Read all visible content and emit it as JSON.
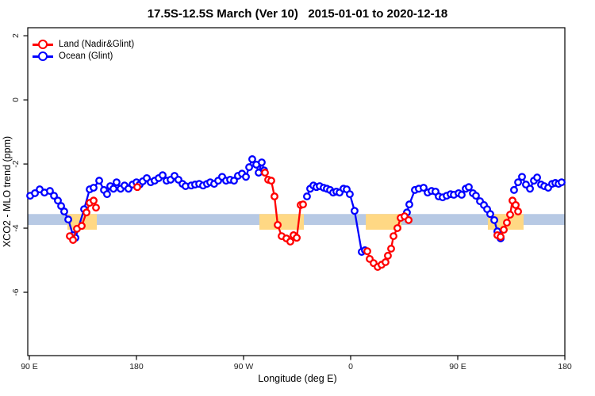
{
  "chart_data": {
    "type": "line",
    "title": "17.5S-12.5S March (Ver 10)   2015-01-01 to 2020-12-18",
    "x_axis": {
      "label": "Longitude (deg E)",
      "domain": [
        88.67,
        540
      ],
      "ticks": [
        {
          "value": 90,
          "label": "90 E"
        },
        {
          "value": 180,
          "label": "180"
        },
        {
          "value": 270,
          "label": "90 W"
        },
        {
          "value": 360,
          "label": "0"
        },
        {
          "value": 450,
          "label": "90 E"
        },
        {
          "value": 540,
          "label": "180"
        }
      ]
    },
    "y_axis": {
      "label": "XCO2 - MLO trend (ppm)",
      "domain": [
        -7.975,
        2.25
      ],
      "ticks": [
        {
          "value": 2,
          "label": "2"
        },
        {
          "value": 0,
          "label": "0"
        },
        {
          "value": -2,
          "label": "-2"
        },
        {
          "value": -4,
          "label": "-4"
        },
        {
          "value": -6,
          "label": "-6"
        }
      ]
    },
    "legend": [
      {
        "label": "Land (Nadir&Glint)",
        "color": "#ff0000"
      },
      {
        "label": "Ocean (Glint)",
        "color": "#0000ff"
      }
    ],
    "reference_band": {
      "x_range": [
        88.67,
        540
      ],
      "y_range": [
        -3.9,
        -3.56
      ],
      "color": "#b7c9e4"
    },
    "land_highlights": {
      "color": "#ffd884",
      "y_range": [
        -4.05,
        -3.56
      ],
      "x_ranges": [
        [
          122,
          146.7
        ],
        [
          283.3,
          320.7
        ],
        [
          372.7,
          402.7
        ],
        [
          475.3,
          505.3
        ]
      ]
    },
    "series": [
      {
        "name": "Ocean (Glint)",
        "color": "#0000ff",
        "segments": [
          [
            [
              90.7,
              -2.99
            ],
            [
              94.7,
              -2.91
            ],
            [
              98.7,
              -2.79
            ],
            [
              102.7,
              -2.89
            ],
            [
              107.3,
              -2.84
            ],
            [
              110.7,
              -2.99
            ],
            [
              114,
              -3.14
            ],
            [
              116.7,
              -3.31
            ],
            [
              119.3,
              -3.48
            ],
            [
              122.7,
              -3.73
            ],
            [
              126.7,
              -4.22
            ],
            [
              128.7,
              -4.3
            ],
            [
              136,
              -3.41
            ],
            [
              140.7,
              -2.79
            ],
            [
              144,
              -2.74
            ],
            [
              148.7,
              -2.52
            ],
            [
              152.7,
              -2.81
            ],
            [
              155.3,
              -2.94
            ],
            [
              158,
              -2.69
            ],
            [
              160.7,
              -2.77
            ],
            [
              163.3,
              -2.57
            ],
            [
              166.7,
              -2.77
            ],
            [
              170,
              -2.67
            ],
            [
              173.3,
              -2.77
            ],
            [
              176.7,
              -2.64
            ],
            [
              180,
              -2.57
            ],
            [
              182.7,
              -2.64
            ],
            [
              185.3,
              -2.54
            ],
            [
              188.7,
              -2.44
            ],
            [
              192,
              -2.57
            ],
            [
              195.3,
              -2.52
            ],
            [
              198.7,
              -2.44
            ],
            [
              202,
              -2.35
            ],
            [
              205.3,
              -2.52
            ],
            [
              208.7,
              -2.49
            ],
            [
              212,
              -2.37
            ],
            [
              215.3,
              -2.49
            ],
            [
              218.7,
              -2.62
            ],
            [
              221.3,
              -2.69
            ],
            [
              226,
              -2.67
            ],
            [
              229.3,
              -2.64
            ],
            [
              232.7,
              -2.62
            ],
            [
              236,
              -2.67
            ],
            [
              239.3,
              -2.62
            ],
            [
              242,
              -2.57
            ],
            [
              245.3,
              -2.62
            ],
            [
              248.7,
              -2.52
            ],
            [
              252,
              -2.4
            ],
            [
              255.3,
              -2.52
            ],
            [
              258.7,
              -2.49
            ],
            [
              262,
              -2.52
            ],
            [
              265.3,
              -2.37
            ],
            [
              268.7,
              -2.3
            ],
            [
              272,
              -2.4
            ],
            [
              274.7,
              -2.1
            ],
            [
              277.3,
              -1.85
            ],
            [
              280.7,
              -2.02
            ],
            [
              282.7,
              -2.27
            ],
            [
              285.3,
              -1.95
            ],
            [
              287.3,
              -2.2
            ]
          ],
          [
            [
              323.3,
              -3.01
            ],
            [
              326,
              -2.77
            ],
            [
              328.7,
              -2.67
            ],
            [
              331.3,
              -2.72
            ],
            [
              334,
              -2.69
            ],
            [
              337.3,
              -2.74
            ],
            [
              340,
              -2.77
            ],
            [
              342.7,
              -2.81
            ],
            [
              345.3,
              -2.89
            ],
            [
              348,
              -2.86
            ],
            [
              350.7,
              -2.89
            ],
            [
              354,
              -2.77
            ],
            [
              356.7,
              -2.79
            ],
            [
              359.3,
              -2.94
            ],
            [
              363.3,
              -3.46
            ],
            [
              369.3,
              -4.74
            ],
            [
              372,
              -4.69
            ]
          ],
          [
            [
              407.3,
              -3.51
            ],
            [
              409.3,
              -3.26
            ],
            [
              414,
              -2.81
            ],
            [
              417.3,
              -2.77
            ],
            [
              421.3,
              -2.74
            ],
            [
              424.7,
              -2.89
            ],
            [
              428,
              -2.84
            ],
            [
              431.3,
              -2.86
            ],
            [
              434,
              -3.01
            ],
            [
              437.3,
              -3.04
            ],
            [
              440.7,
              -2.99
            ],
            [
              444,
              -2.94
            ],
            [
              446.7,
              -2.96
            ],
            [
              450.7,
              -2.91
            ],
            [
              453.3,
              -2.96
            ],
            [
              456.7,
              -2.77
            ],
            [
              459.3,
              -2.72
            ],
            [
              462.7,
              -2.91
            ],
            [
              465.3,
              -2.99
            ],
            [
              468.7,
              -3.16
            ],
            [
              472,
              -3.28
            ],
            [
              474.7,
              -3.41
            ],
            [
              477.3,
              -3.56
            ],
            [
              480.7,
              -3.75
            ],
            [
              483.3,
              -4.1
            ],
            [
              486,
              -4.32
            ]
          ],
          [
            [
              497.3,
              -2.81
            ],
            [
              500.7,
              -2.57
            ],
            [
              504,
              -2.4
            ],
            [
              507.3,
              -2.64
            ],
            [
              510.7,
              -2.77
            ],
            [
              514,
              -2.52
            ],
            [
              516.7,
              -2.42
            ],
            [
              520,
              -2.64
            ],
            [
              522.7,
              -2.69
            ],
            [
              526,
              -2.74
            ],
            [
              529.3,
              -2.62
            ],
            [
              532,
              -2.59
            ],
            [
              534.7,
              -2.62
            ],
            [
              537.3,
              -2.57
            ]
          ]
        ]
      },
      {
        "name": "Land (Nadir&Glint)",
        "color": "#ff0000",
        "segments": [
          [
            [
              124,
              -4.25
            ],
            [
              126.7,
              -4.37
            ],
            [
              130,
              -4.02
            ],
            [
              134,
              -3.93
            ],
            [
              138,
              -3.51
            ],
            [
              140.7,
              -3.21
            ],
            [
              144,
              -3.14
            ],
            [
              146,
              -3.36
            ]
          ],
          [
            [
              180.7,
              -2.72
            ]
          ],
          [
            [
              288,
              -2.27
            ],
            [
              290.7,
              -2.49
            ],
            [
              293.3,
              -2.52
            ],
            [
              296,
              -3.01
            ],
            [
              298.7,
              -3.9
            ],
            [
              302,
              -4.25
            ],
            [
              306,
              -4.32
            ],
            [
              309.3,
              -4.42
            ],
            [
              312,
              -4.22
            ],
            [
              314.7,
              -4.3
            ],
            [
              318,
              -3.28
            ],
            [
              320,
              -3.26
            ]
          ],
          [
            [
              374,
              -4.72
            ],
            [
              376,
              -4.96
            ],
            [
              379.3,
              -5.09
            ],
            [
              382.7,
              -5.21
            ],
            [
              386,
              -5.14
            ],
            [
              389.3,
              -5.06
            ],
            [
              391.3,
              -4.86
            ],
            [
              394,
              -4.64
            ],
            [
              396,
              -4.25
            ],
            [
              399.3,
              -4.0
            ],
            [
              402,
              -3.68
            ],
            [
              405.3,
              -3.63
            ],
            [
              408.7,
              -3.75
            ]
          ],
          [
            [
              483.3,
              -4.22
            ],
            [
              486,
              -4.27
            ],
            [
              488.7,
              -4.05
            ],
            [
              491.3,
              -3.83
            ],
            [
              494,
              -3.58
            ],
            [
              496,
              -3.14
            ],
            [
              498.7,
              -3.28
            ],
            [
              500.7,
              -3.48
            ]
          ]
        ]
      }
    ]
  }
}
